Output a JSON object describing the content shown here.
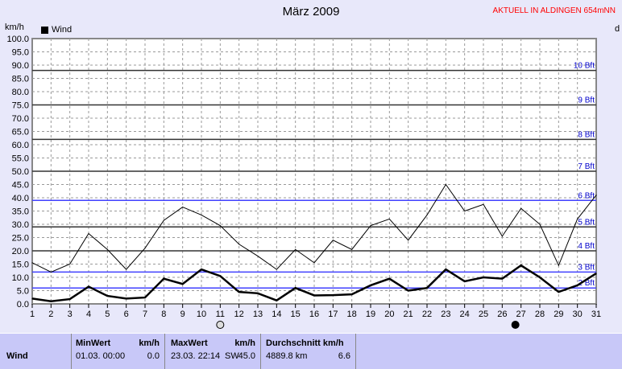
{
  "title": "März 2009",
  "subtitle": "AKTUELL IN ALDINGEN 654mNN",
  "chart_data": {
    "type": "line",
    "ylabel": "km/h",
    "right_label": "d",
    "ylim": [
      0,
      100
    ],
    "yticks": [
      "0.0",
      "5.0",
      "10.0",
      "15.0",
      "20.0",
      "25.0",
      "30.0",
      "35.0",
      "40.0",
      "45.0",
      "50.0",
      "55.0",
      "60.0",
      "65.0",
      "70.0",
      "75.0",
      "80.0",
      "85.0",
      "90.0",
      "95.0",
      "100.0"
    ],
    "x": [
      1,
      2,
      3,
      4,
      5,
      6,
      7,
      8,
      9,
      10,
      11,
      12,
      13,
      14,
      15,
      16,
      17,
      18,
      19,
      20,
      21,
      22,
      23,
      24,
      25,
      26,
      27,
      28,
      29,
      30,
      31
    ],
    "legend": "Wind",
    "series": [
      {
        "style": "thin",
        "values": [
          15.5,
          12,
          15,
          26.5,
          20.5,
          13,
          21,
          31.5,
          36.5,
          33.5,
          29.5,
          22.5,
          18,
          13,
          20.5,
          15.5,
          24,
          20.5,
          29.5,
          32,
          24,
          33.5,
          45,
          35,
          37.5,
          25.5,
          36,
          30,
          14.5,
          32,
          41
        ]
      },
      {
        "style": "thick",
        "values": [
          2,
          1,
          1.8,
          6.5,
          3,
          2,
          2.4,
          9.5,
          7.5,
          13,
          10.5,
          4.5,
          4,
          1.3,
          6,
          3.2,
          3.3,
          3.6,
          7,
          9.5,
          5,
          6,
          13,
          8.5,
          10,
          9.5,
          14.5,
          10,
          4.5,
          7,
          11.5
        ]
      }
    ],
    "beaufort": [
      {
        "label": "2 Bft",
        "value": 6
      },
      {
        "label": "3 Bft",
        "value": 12
      },
      {
        "label": "4 Bft",
        "value": 20
      },
      {
        "label": "5 Bft",
        "value": 29
      },
      {
        "label": "6 Bft",
        "value": 39
      },
      {
        "label": "7 Bft",
        "value": 50
      },
      {
        "label": "8 Bft",
        "value": 62
      },
      {
        "label": "9 Bft",
        "value": 75
      },
      {
        "label": "10 Bft",
        "value": 88
      }
    ],
    "moon": [
      {
        "phase": "full-moon",
        "day": 11
      },
      {
        "phase": "new-moon",
        "day": 26.7
      }
    ]
  },
  "table": {
    "row_label": "Wind",
    "min": {
      "header": "MinWert",
      "unit": "km/h",
      "date": "01.03.  00:00",
      "value": "0.0"
    },
    "max": {
      "header": "MaxWert",
      "unit": "km/h",
      "date": "23.03.  22:14",
      "dir": "SW",
      "value": "45.0"
    },
    "avg": {
      "header": "Durchschnitt km/h",
      "distance": "4889.8 km",
      "value": "6.6"
    }
  }
}
